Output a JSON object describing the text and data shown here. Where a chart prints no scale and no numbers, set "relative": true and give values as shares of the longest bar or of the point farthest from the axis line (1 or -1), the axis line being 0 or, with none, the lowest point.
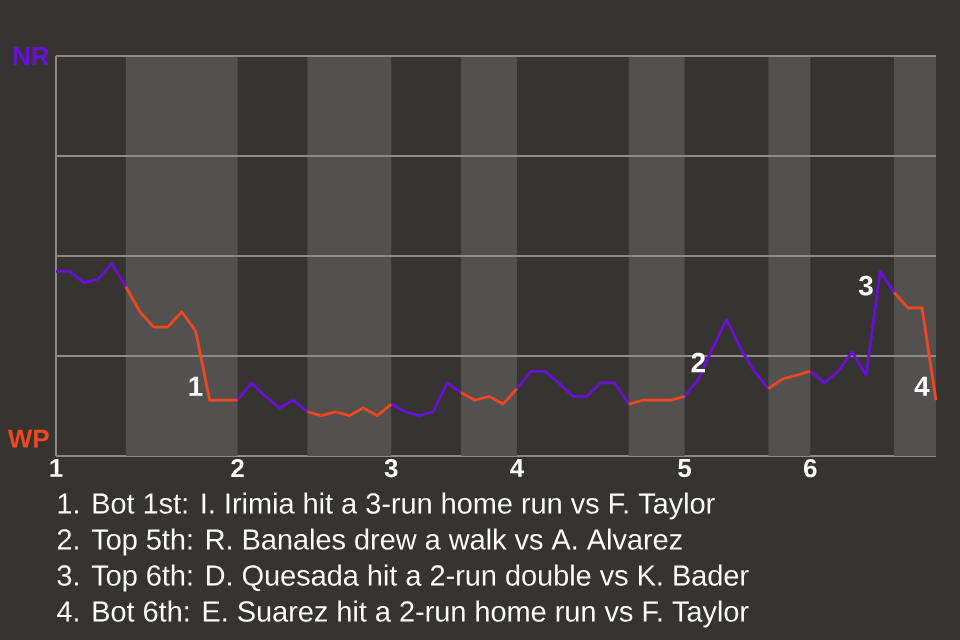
{
  "chart_data": {
    "type": "line",
    "categories": [
      "1",
      null,
      null,
      null,
      null,
      null,
      null,
      null,
      null,
      null,
      null,
      null,
      null,
      "2",
      null,
      null,
      null,
      null,
      null,
      null,
      null,
      null,
      null,
      null,
      "3",
      null,
      null,
      null,
      null,
      null,
      null,
      null,
      null,
      "4",
      null,
      null,
      null,
      null,
      null,
      null,
      null,
      null,
      null,
      null,
      null,
      "5",
      null,
      null,
      null,
      null,
      null,
      null,
      null,
      null,
      "6",
      null,
      null,
      null,
      null,
      null,
      null,
      null,
      null,
      null
    ],
    "relative": true,
    "series": [
      {
        "color": "#6a0fd6",
        "values": [
          0.96,
          0.96,
          0.9,
          0.92,
          1,
          0.88,
          null,
          null,
          null,
          null,
          null,
          null,
          null,
          0.29,
          0.38,
          0.31,
          0.25,
          0.29,
          0.23,
          null,
          null,
          null,
          null,
          null,
          0.27,
          0.23,
          0.21,
          0.23,
          0.38,
          0.33,
          null,
          null,
          null,
          0.35,
          0.44,
          0.44,
          0.38,
          0.31,
          0.31,
          0.38,
          0.38,
          0.27,
          null,
          null,
          null,
          0.31,
          0.4,
          0.56,
          0.71,
          0.56,
          0.44,
          0.35,
          null,
          null,
          0.44,
          0.38,
          0.44,
          0.54,
          0.42,
          0.96,
          0.85,
          null,
          null,
          null
        ]
      },
      {
        "color": "#f2471e",
        "values": [
          null,
          null,
          null,
          null,
          null,
          0.88,
          0.75,
          0.67,
          0.67,
          0.75,
          0.65,
          0.29,
          0.29,
          0.29,
          null,
          null,
          null,
          null,
          0.23,
          0.21,
          0.23,
          0.21,
          0.25,
          0.21,
          0.27,
          null,
          null,
          null,
          null,
          0.33,
          0.29,
          0.31,
          0.27,
          0.35,
          null,
          null,
          null,
          null,
          null,
          null,
          null,
          0.27,
          0.29,
          0.29,
          0.29,
          0.31,
          null,
          null,
          null,
          null,
          null,
          0.35,
          0.4,
          0.42,
          0.44,
          null,
          null,
          null,
          null,
          null,
          0.85,
          0.77,
          0.77,
          0.29
        ]
      }
    ],
    "ref_lines": [
      {
        "axis": "y",
        "value": 0.52
      },
      {
        "axis": "y",
        "value": 1.04
      },
      {
        "axis": "y",
        "value": 1.56
      },
      {
        "axis": "y",
        "value": 2.08
      }
    ],
    "line_style": "solid",
    "annotations": [
      "NR",
      "WP",
      "1",
      "2",
      "3",
      "4",
      "1. Bot 1st: I. Irimia hit a 3-run home run vs F. Taylor",
      "2. Top 5th: R. Banales drew a walk vs A. Alvarez",
      "3. Top 6th: D. Quesada hit a 2-run double vs K. Bader",
      "4. Bot 6th: E. Suarez hit a 2-run home run vs F. Taylor"
    ]
  }
}
